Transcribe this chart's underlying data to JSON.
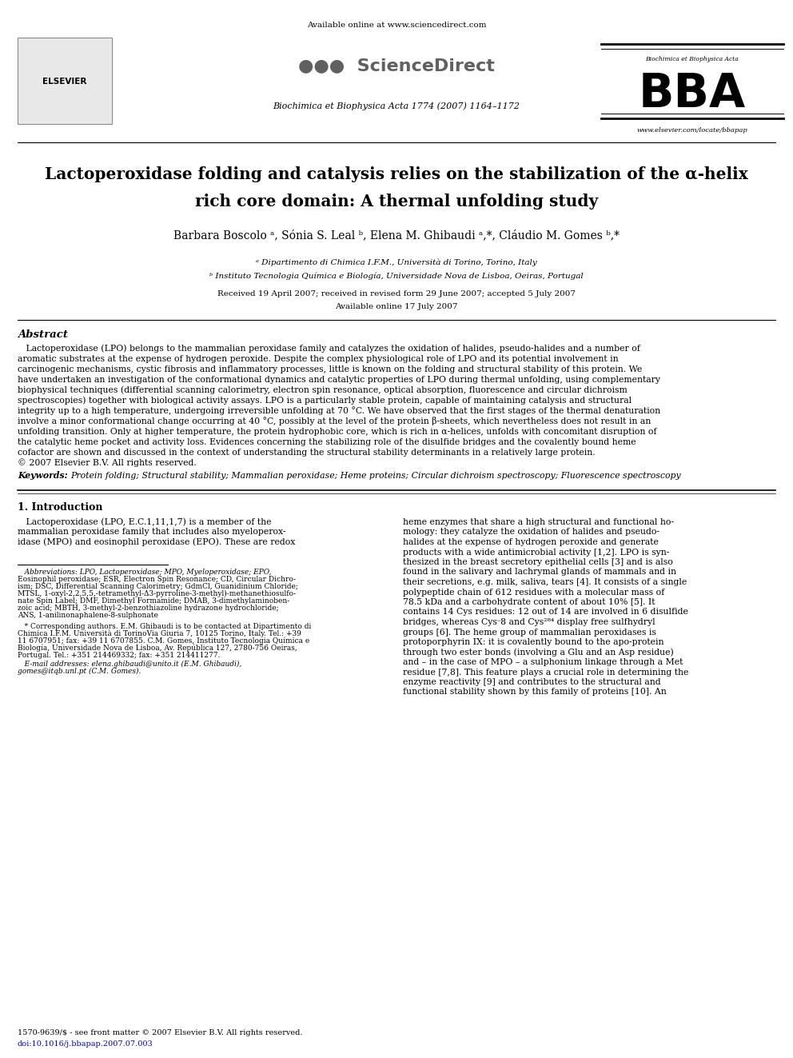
{
  "bg_color": "#ffffff",
  "available_online_text": "Available online at www.sciencedirect.com",
  "journal_ref": "Biochimica et Biophysica Acta 1774 (2007) 1164–1172",
  "title_line1": "Lactoperoxidase folding and catalysis relies on the stabilization of the α-helix",
  "title_line2": "rich core domain: A thermal unfolding study",
  "authors": "Barbara Boscolo ᵃ, Sónia S. Leal ᵇ, Elena M. Ghibaudi ᵃ,*, Cláudio M. Gomes ᵇ,*",
  "affil_a": "ᵃ Dipartimento di Chimica I.F.M., Università di Torino, Torino, Italy",
  "affil_b": "ᵇ Instituto Tecnologia Química e Biología, Universidade Nova de Lisboa, Oeiras, Portugal",
  "received": "Received 19 April 2007; received in revised form 29 June 2007; accepted 5 July 2007",
  "available_online": "Available online 17 July 2007",
  "abstract_header": "Abstract",
  "abstract_body": [
    "   Lactoperoxidase (LPO) belongs to the mammalian peroxidase family and catalyzes the oxidation of halides, pseudo-halides and a number of",
    "aromatic substrates at the expense of hydrogen peroxide. Despite the complex physiological role of LPO and its potential involvement in",
    "carcinogenic mechanisms, cystic fibrosis and inflammatory processes, little is known on the folding and structural stability of this protein. We",
    "have undertaken an investigation of the conformational dynamics and catalytic properties of LPO during thermal unfolding, using complementary",
    "biophysical techniques (differential scanning calorimetry, electron spin resonance, optical absorption, fluorescence and circular dichroism",
    "spectroscopies) together with biological activity assays. LPO is a particularly stable protein, capable of maintaining catalysis and structural",
    "integrity up to a high temperature, undergoing irreversible unfolding at 70 °C. We have observed that the first stages of the thermal denaturation",
    "involve a minor conformational change occurring at 40 °C, possibly at the level of the protein β-sheets, which nevertheless does not result in an",
    "unfolding transition. Only at higher temperature, the protein hydrophobic core, which is rich in α-helices, unfolds with concomitant disruption of",
    "the catalytic heme pocket and activity loss. Evidences concerning the stabilizing role of the disulfide bridges and the covalently bound heme",
    "cofactor are shown and discussed in the context of understanding the structural stability determinants in a relatively large protein.",
    "© 2007 Elsevier B.V. All rights reserved."
  ],
  "keywords_label": "Keywords:",
  "keywords_text": "Protein folding; Structural stability; Mammalian peroxidase; Heme proteins; Circular dichroism spectroscopy; Fluorescence spectroscopy",
  "section1_header": "1. Introduction",
  "intro_col1": [
    "   Lactoperoxidase (LPO, E.C.1,11,1,7) is a member of the",
    "mammalian peroxidase family that includes also myeloperox-",
    "idase (MPO) and eosinophil peroxidase (EPO). These are redox"
  ],
  "intro_col2": [
    "heme enzymes that share a high structural and functional ho-",
    "mology: they catalyze the oxidation of halides and pseudo-",
    "halides at the expense of hydrogen peroxide and generate",
    "products with a wide antimicrobial activity [1,2]. LPO is syn-",
    "thesized in the breast secretory epithelial cells [3] and is also",
    "found in the salivary and lachrymal glands of mammals and in",
    "their secretions, e.g. milk, saliva, tears [4]. It consists of a single",
    "polypeptide chain of 612 residues with a molecular mass of",
    "78.5 kDa and a carbohydrate content of about 10% [5]. It",
    "contains 14 Cys residues: 12 out of 14 are involved in 6 disulfide",
    "bridges, whereas Cysᵕ8 and Cys²⁸⁴ display free sulfhydryl",
    "groups [6]. The heme group of mammalian peroxidases is",
    "protoporphyrin IX: it is covalently bound to the apo-protein",
    "through two ester bonds (involving a Glu and an Asp residue)",
    "and – in the case of MPO – a sulphonium linkage through a Met",
    "residue [7,8]. This feature plays a crucial role in determining the",
    "enzyme reactivity [9] and contributes to the structural and",
    "functional stability shown by this family of proteins [10]. An"
  ],
  "fn_abbrev_lines": [
    "   Abbreviations: LPO, Lactoperoxidase; MPO, Myeloperoxidase; EPO,",
    "Eosinophil peroxidase; ESR, Electron Spin Resonance; CD, Circular Dichro-",
    "ism; DSC, Differential Scanning Calorimetry; GdmCl, Guanidinium Chloride;",
    "MTSL, 1-oxyl-2,2,5,5,-tetramethyl-Δ3-pyrroline-3-methyl)-methanethiosulfo-",
    "nate Spin Label; DMF, Dimethyl Formamide; DMAB, 3-dimethylaminoben-",
    "zoic acid; MBTH, 3-methyl-2-benzothiazoline hydrazone hydrochloride;",
    "ANS, 1-anilinonaphalene-8-sulphonate"
  ],
  "fn_corr_lines": [
    "   * Corresponding authors. E.M. Ghibaudi is to be contacted at Dipartimento di",
    "Chimica I.F.M. Università di TorinoVia Giuria 7, 10125 Torino, Italy. Tel.: +39",
    "11 6707951; fax: +39 11 6707855. C.M. Gomes, Instituto Tecnologia Química e",
    "Biología, Universidade Nova de Lisboa, Av. República 127, 2780-756 Oeiras,",
    "Portugal. Tel.: +351 214469332; fax: +351 214411277."
  ],
  "fn_email_line1": "   E-mail addresses: elena.ghibaudi@unito.it (E.M. Ghibaudi),",
  "fn_email_line2": "gomes@itqb.unl.pt (C.M. Gomes).",
  "bottom_issn": "1570-9639/$ - see front matter © 2007 Elsevier B.V. All rights reserved.",
  "bottom_doi": "doi:10.1016/j.bbapap.2007.07.003",
  "bba_subtitle": "Biochimica et Biophysica Acta",
  "website": "www.elsevier.com/locate/bbapap"
}
